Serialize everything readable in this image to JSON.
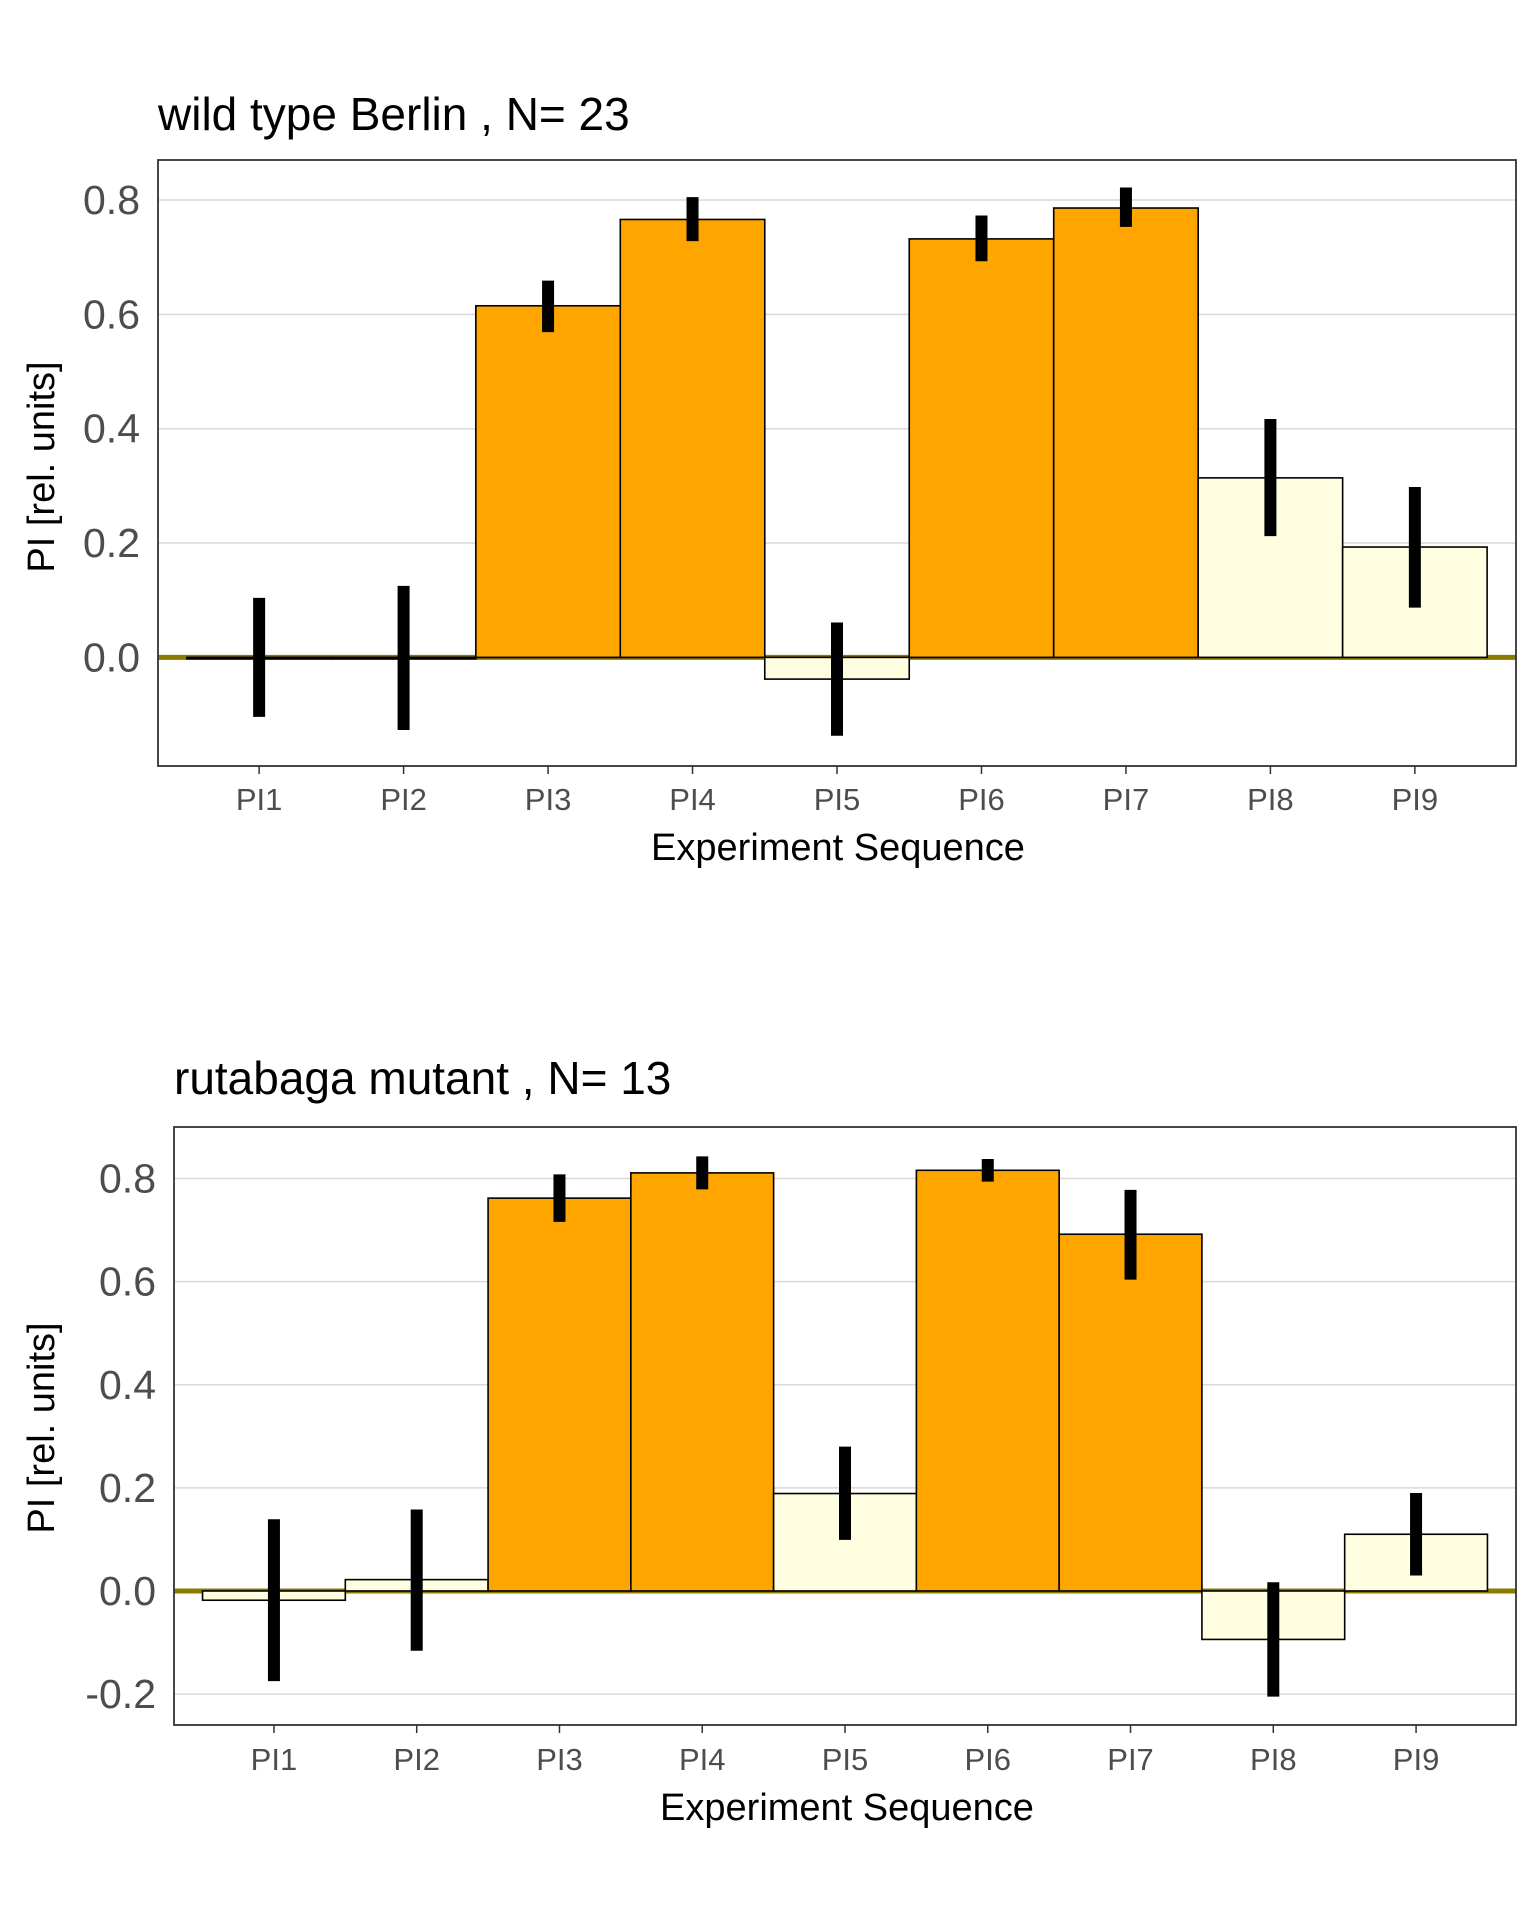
{
  "colors": {
    "highlight": "#FFA500",
    "pale": "#FFFEE0",
    "grid": "#d9d9d9",
    "zeroline": "#8B7A00",
    "errorbar": "#000000"
  },
  "chart_data": [
    {
      "type": "bar",
      "title": "wild type Berlin , N= 23",
      "xlabel": "Experiment Sequence",
      "ylabel": "PI [rel. units]",
      "ylim": [
        -0.19,
        0.87
      ],
      "yticks": [
        "0.0",
        "0.2",
        "0.4",
        "0.6",
        "0.8"
      ],
      "grid": true,
      "categories": [
        "PI1",
        "PI2",
        "PI3",
        "PI4",
        "PI5",
        "PI6",
        "PI7",
        "PI8",
        "PI9"
      ],
      "values": [
        0.0,
        0.0,
        0.615,
        0.766,
        -0.038,
        0.732,
        0.786,
        0.314,
        0.193
      ],
      "error_low": [
        -0.104,
        -0.127,
        0.569,
        0.728,
        -0.137,
        0.693,
        0.753,
        0.212,
        0.087
      ],
      "error_high": [
        0.104,
        0.125,
        0.659,
        0.805,
        0.061,
        0.773,
        0.822,
        0.417,
        0.298
      ],
      "highlighted": [
        false,
        false,
        true,
        true,
        false,
        true,
        true,
        false,
        false
      ]
    },
    {
      "type": "bar",
      "title": "rutabaga mutant , N= 13",
      "xlabel": "Experiment Sequence",
      "ylabel": "PI [rel. units]",
      "ylim": [
        -0.26,
        0.9
      ],
      "yticks": [
        "-0.2",
        "0.0",
        "0.2",
        "0.4",
        "0.6",
        "0.8"
      ],
      "grid": true,
      "categories": [
        "PI1",
        "PI2",
        "PI3",
        "PI4",
        "PI5",
        "PI6",
        "PI7",
        "PI8",
        "PI9"
      ],
      "values": [
        -0.018,
        0.022,
        0.762,
        0.811,
        0.189,
        0.816,
        0.692,
        -0.094,
        0.11
      ],
      "error_low": [
        -0.175,
        -0.116,
        0.716,
        0.779,
        0.099,
        0.794,
        0.604,
        -0.205,
        0.03
      ],
      "error_high": [
        0.139,
        0.158,
        0.808,
        0.843,
        0.28,
        0.838,
        0.778,
        0.017,
        0.19
      ],
      "highlighted": [
        false,
        false,
        true,
        true,
        false,
        true,
        true,
        false,
        false
      ]
    }
  ]
}
